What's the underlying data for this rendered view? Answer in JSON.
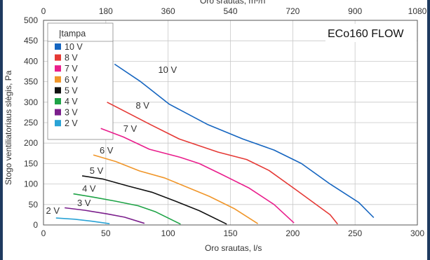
{
  "chart_data": {
    "type": "line",
    "title": "ECo160 FLOW",
    "xlabel": "Oro srautas, l/s",
    "x2label": "Oro srautas, m³/h",
    "ylabel": "Stogo ventiliatoriaus slėgis, Pa",
    "xlim": [
      0,
      300
    ],
    "ylim": [
      0,
      500
    ],
    "x_ticks": [
      "0",
      "50",
      "100",
      "150",
      "200",
      "250",
      "300"
    ],
    "x2_ticks": [
      "0",
      "180",
      "360",
      "540",
      "720",
      "900",
      "1080"
    ],
    "y_ticks": [
      "0",
      "50",
      "100",
      "150",
      "200",
      "250",
      "300",
      "350",
      "400",
      "450",
      "500"
    ],
    "grid": true,
    "legend_title": "Įtampa",
    "legend_position": "top-left",
    "series": [
      {
        "name": "10 V",
        "color": "#1565c0",
        "points": [
          [
            57,
            393
          ],
          [
            78,
            350
          ],
          [
            101,
            295
          ],
          [
            132,
            245
          ],
          [
            160,
            210
          ],
          [
            185,
            183
          ],
          [
            207,
            150
          ],
          [
            230,
            100
          ],
          [
            253,
            55
          ],
          [
            265,
            18
          ]
        ]
      },
      {
        "name": "8 V",
        "color": "#e53935",
        "points": [
          [
            51,
            300
          ],
          [
            67,
            275
          ],
          [
            86,
            245
          ],
          [
            109,
            210
          ],
          [
            140,
            178
          ],
          [
            163,
            160
          ],
          [
            181,
            133
          ],
          [
            203,
            85
          ],
          [
            230,
            25
          ],
          [
            236,
            2
          ]
        ]
      },
      {
        "name": "7 V",
        "color": "#e91e8c",
        "points": [
          [
            46,
            236
          ],
          [
            64,
            215
          ],
          [
            85,
            185
          ],
          [
            110,
            165
          ],
          [
            125,
            150
          ],
          [
            142,
            125
          ],
          [
            165,
            90
          ],
          [
            185,
            50
          ],
          [
            201,
            5
          ]
        ]
      },
      {
        "name": "6 V",
        "color": "#f0962a",
        "points": [
          [
            40,
            171
          ],
          [
            58,
            155
          ],
          [
            77,
            132
          ],
          [
            97,
            115
          ],
          [
            113,
            95
          ],
          [
            133,
            70
          ],
          [
            153,
            40
          ],
          [
            172,
            3
          ]
        ]
      },
      {
        "name": "5 V",
        "color": "#111111",
        "points": [
          [
            31,
            120
          ],
          [
            48,
            112
          ],
          [
            68,
            95
          ],
          [
            87,
            80
          ],
          [
            106,
            58
          ],
          [
            125,
            35
          ],
          [
            147,
            2
          ]
        ]
      },
      {
        "name": "4 V",
        "color": "#1ea346",
        "points": [
          [
            24,
            76
          ],
          [
            40,
            68
          ],
          [
            58,
            58
          ],
          [
            76,
            47
          ],
          [
            90,
            32
          ],
          [
            110,
            2
          ]
        ]
      },
      {
        "name": "3 V",
        "color": "#7b1f8c",
        "points": [
          [
            17,
            42
          ],
          [
            33,
            36
          ],
          [
            51,
            27
          ],
          [
            65,
            19
          ],
          [
            81,
            4
          ]
        ]
      },
      {
        "name": "2 V",
        "color": "#29a3d6",
        "points": [
          [
            10,
            17
          ],
          [
            25,
            14
          ],
          [
            39,
            9
          ],
          [
            53,
            3
          ]
        ]
      }
    ],
    "curve_labels": [
      {
        "text": "10 V",
        "x": 92,
        "y": 372
      },
      {
        "text": "8 V",
        "x": 74,
        "y": 284
      },
      {
        "text": "7 V",
        "x": 64,
        "y": 228
      },
      {
        "text": "6 V",
        "x": 45,
        "y": 175
      },
      {
        "text": "5 V",
        "x": 37,
        "y": 125
      },
      {
        "text": "4 V",
        "x": 31,
        "y": 81
      },
      {
        "text": "3 V",
        "x": 27,
        "y": 46
      },
      {
        "text": "2 V",
        "x": 2,
        "y": 27
      }
    ]
  }
}
